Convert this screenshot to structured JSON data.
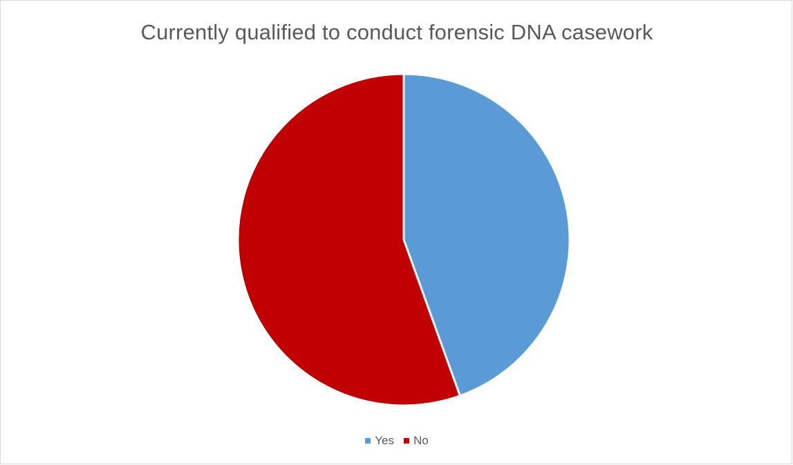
{
  "chart_data": {
    "type": "pie",
    "title": "Currently qualified to conduct forensic DNA casework",
    "categories": [
      "Yes",
      "No"
    ],
    "values": [
      44.5,
      55.5
    ],
    "colors": [
      "#5b9bd5",
      "#c00000"
    ],
    "legend_position": "bottom",
    "start_angle": "top, clockwise"
  },
  "legend": {
    "items": [
      {
        "label": "Yes",
        "color": "#5b9bd5"
      },
      {
        "label": "No",
        "color": "#c00000"
      }
    ]
  }
}
